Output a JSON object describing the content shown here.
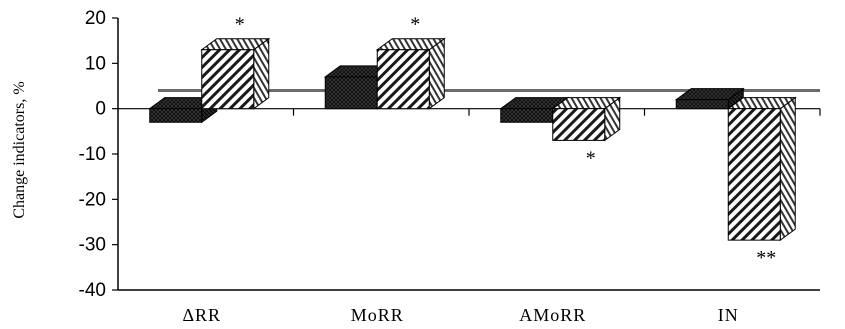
{
  "chart_data": {
    "type": "bar",
    "style": "3d-clustered",
    "ylabel": "Change indicators, %",
    "ylim": [
      -40,
      20
    ],
    "yticks": [
      20,
      10,
      0,
      -10,
      -20,
      -30,
      -40
    ],
    "categories": [
      "ΔRR",
      "MoRR",
      "AMoRR",
      "IN"
    ],
    "series": [
      {
        "fill": "dark-crosshatch",
        "values": [
          -3,
          7,
          -3,
          2
        ]
      },
      {
        "fill": "diagonal-stripes",
        "values": [
          13,
          13,
          -7,
          -29
        ]
      }
    ],
    "significance": [
      {
        "category": "ΔRR",
        "series": 1,
        "mark": "*"
      },
      {
        "category": "MoRR",
        "series": 1,
        "mark": "*"
      },
      {
        "category": "AMoRR",
        "series": 1,
        "mark": "*"
      },
      {
        "category": "IN",
        "series": 1,
        "mark": "**"
      }
    ],
    "reference_line": 4,
    "grid": false,
    "legend": "none"
  }
}
